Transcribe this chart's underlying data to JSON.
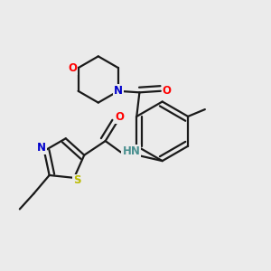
{
  "bg_color": "#ebebeb",
  "bond_color": "#1a1a1a",
  "bond_width": 1.6,
  "atom_colors": {
    "N": "#0000cc",
    "O": "#ff0000",
    "S": "#bbbb00",
    "H": "#4a9090"
  },
  "font_size": 8.5
}
